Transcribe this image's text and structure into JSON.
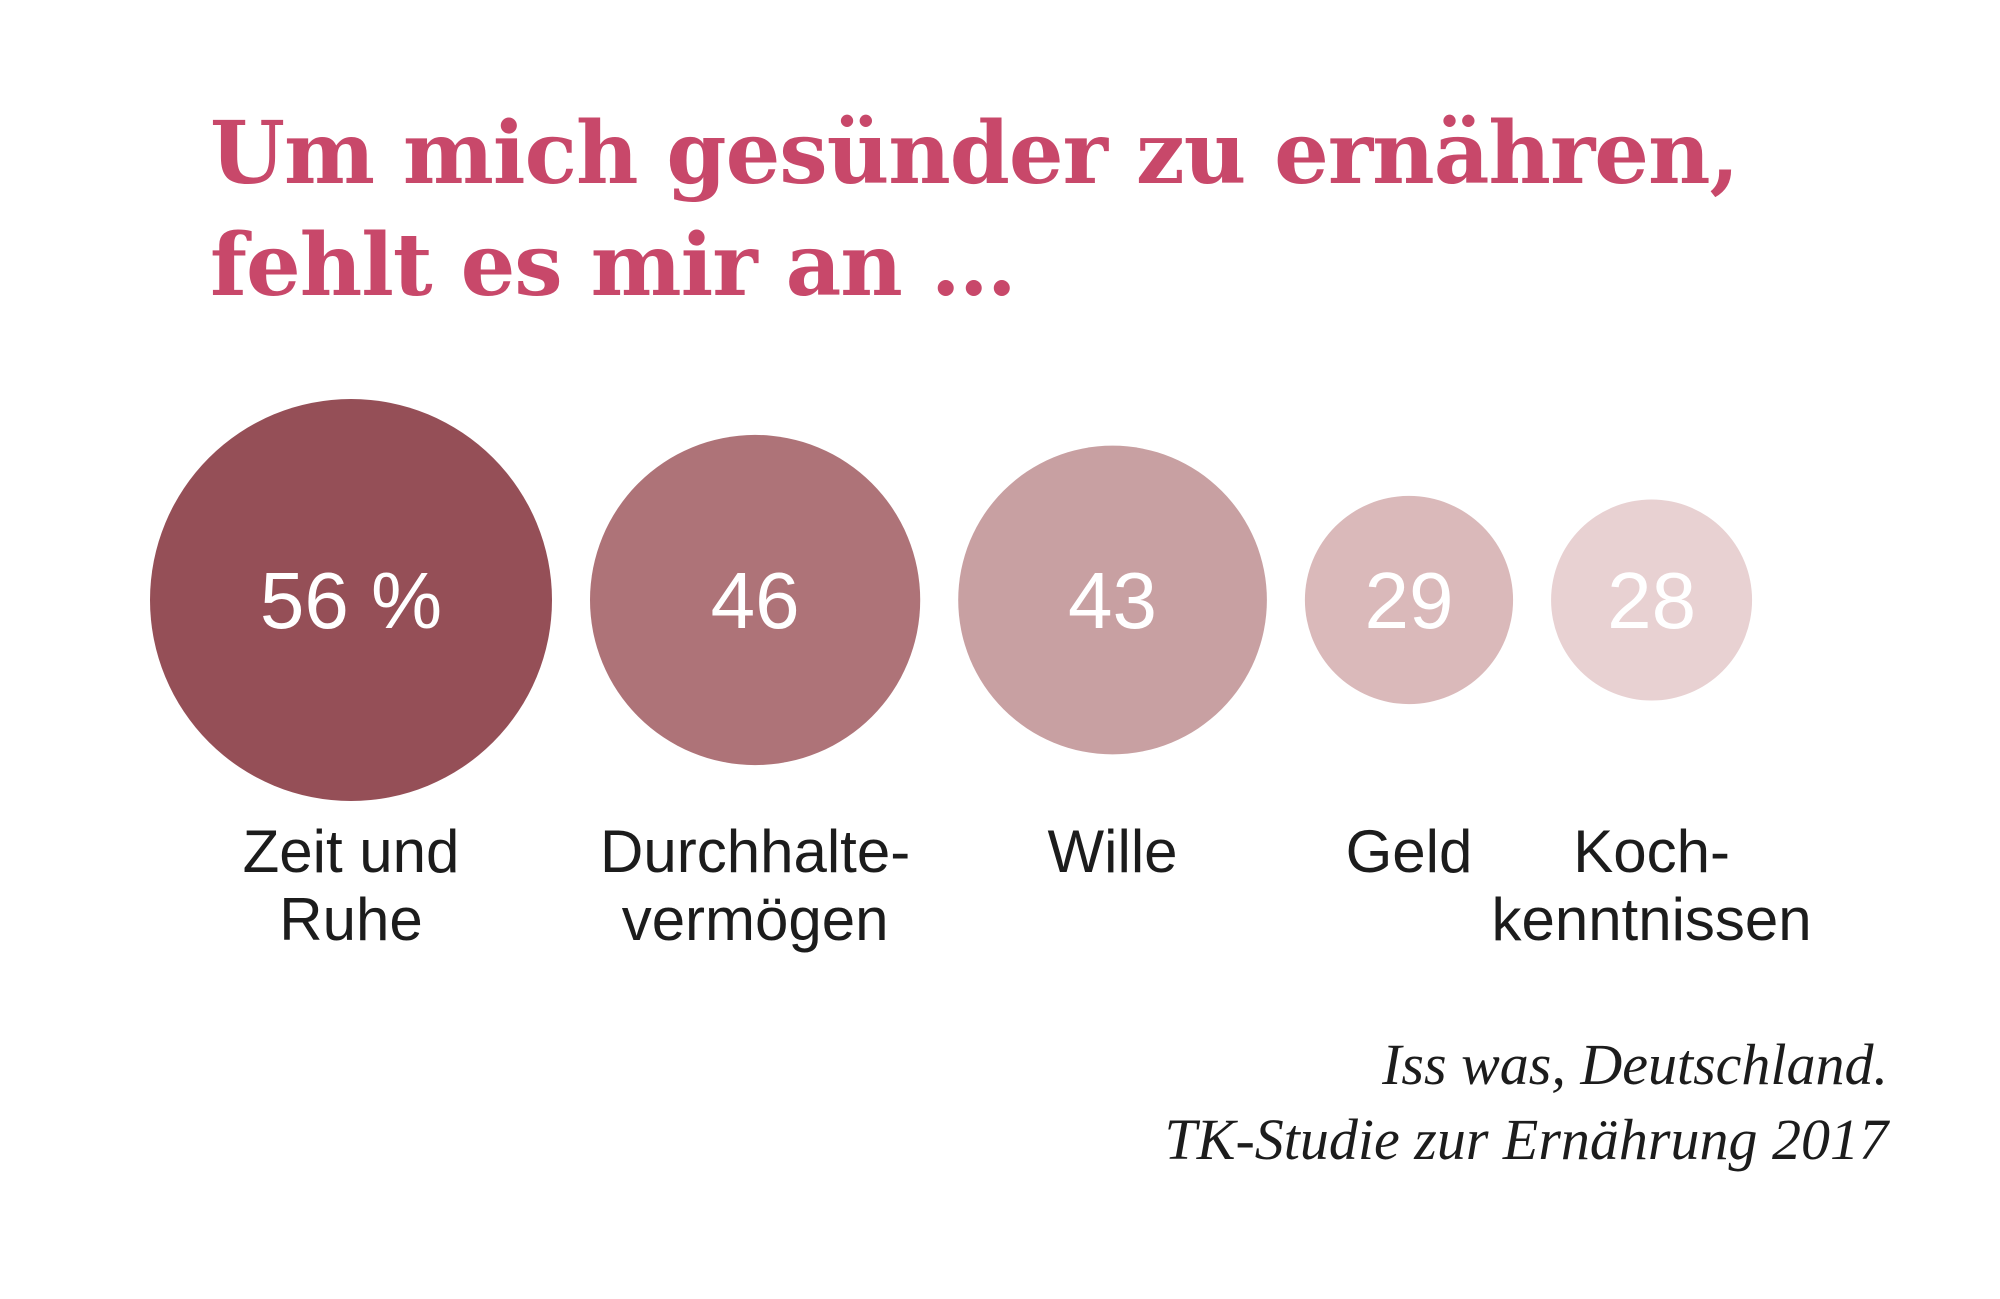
{
  "title": {
    "line1": "Um mich gesünder zu ernähren,",
    "line2": "fehlt es mir an …",
    "color": "#c8486a"
  },
  "chart_data": {
    "type": "bubble",
    "title": "Um mich gesünder zu ernähren, fehlt es mir an …",
    "unit": "%",
    "series": [
      {
        "label_lines": [
          "Zeit und",
          "Ruhe"
        ],
        "value": 56,
        "display": "56 %",
        "color": "#954f57"
      },
      {
        "label_lines": [
          "Durchhalte-",
          "vermögen"
        ],
        "value": 46,
        "display": "46",
        "color": "#ae7378"
      },
      {
        "label_lines": [
          "Wille"
        ],
        "value": 43,
        "display": "43",
        "color": "#c8a0a2"
      },
      {
        "label_lines": [
          "Geld"
        ],
        "value": 29,
        "display": "29",
        "color": "#dab9ba"
      },
      {
        "label_lines": [
          "Koch-",
          "kenntnissen"
        ],
        "value": 28,
        "display": "28",
        "color": "#e8d1d2"
      }
    ],
    "value_text_color": "#ffffff",
    "label_text_color": "#1c1c1c"
  },
  "source": {
    "line1": "Iss was, Deutschland.",
    "line2": "TK-Studie zur Ernährung 2017"
  }
}
